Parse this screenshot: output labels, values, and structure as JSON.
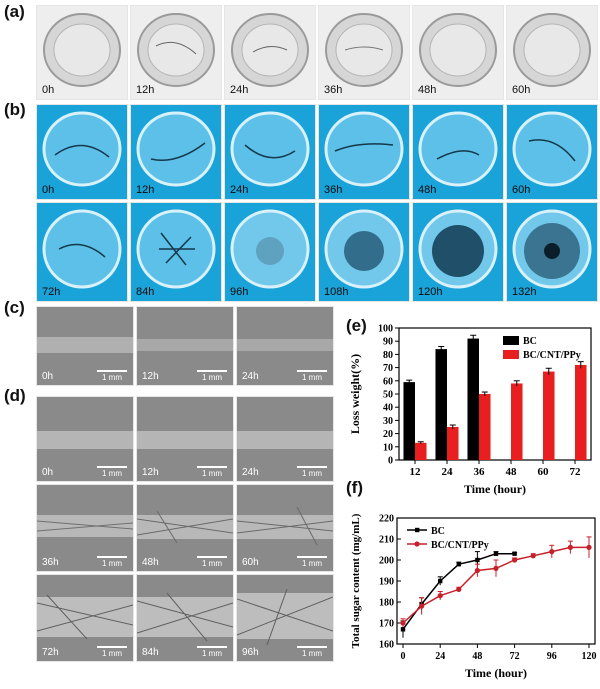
{
  "panels": {
    "a": {
      "label": "(a)",
      "times": [
        "0h",
        "12h",
        "24h",
        "36h",
        "48h",
        "60h"
      ]
    },
    "b": {
      "label": "(b)",
      "row1": [
        "0h",
        "12h",
        "24h",
        "36h",
        "48h",
        "60h"
      ],
      "row2": [
        "72h",
        "84h",
        "96h",
        "108h",
        "120h",
        "132h"
      ]
    },
    "c": {
      "label": "(c)",
      "times": [
        "0h",
        "12h",
        "24h"
      ],
      "scale": "1 mm"
    },
    "d": {
      "label": "(d)",
      "row1": [
        "0h",
        "12h",
        "24h"
      ],
      "row2": [
        "36h",
        "48h",
        "60h"
      ],
      "row3": [
        "72h",
        "84h",
        "96h"
      ],
      "scale": "1 mm"
    },
    "e": {
      "label": "(e)"
    },
    "f": {
      "label": "(f)"
    }
  },
  "colors": {
    "bc": "#000000",
    "bccnt_bar": "#e81f1f",
    "bccnt_line": "#c8202a",
    "dish_a_bg": "#eeeeee",
    "dish_b_bg": "#1aa3d9",
    "sem_bg": "#8a8a8a"
  },
  "chart_data": [
    {
      "type": "bar",
      "panel": "(e)",
      "categories": [
        "12",
        "24",
        "36",
        "48",
        "60",
        "72"
      ],
      "xlabel": "Time (hour)",
      "ylabel": "Loss weight(%)",
      "ylim": [
        0,
        100
      ],
      "yticks": [
        0,
        10,
        20,
        30,
        40,
        50,
        60,
        70,
        80,
        90,
        100
      ],
      "legend": "top-right",
      "series": [
        {
          "name": "BC",
          "values": [
            59,
            84,
            92,
            null,
            null,
            null
          ],
          "errors": [
            1.5,
            2,
            2.5,
            null,
            null,
            null
          ]
        },
        {
          "name": "BC/CNT/PPy",
          "values": [
            13,
            25,
            50,
            58,
            67,
            72
          ],
          "errors": [
            0.8,
            1.5,
            1.5,
            2,
            2.5,
            2.5
          ]
        }
      ]
    },
    {
      "type": "line",
      "panel": "(f)",
      "xlabel": "Time (hour)",
      "ylabel": "Total sugar content (mg/mL)",
      "xlim": [
        0,
        120
      ],
      "ylim": [
        160,
        220
      ],
      "xticks": [
        0,
        24,
        48,
        72,
        96,
        120
      ],
      "yticks": [
        160,
        170,
        180,
        190,
        200,
        210,
        220
      ],
      "legend": "top-left",
      "series": [
        {
          "name": "BC",
          "x": [
            0,
            12,
            24,
            36,
            48,
            60,
            72
          ],
          "y": [
            167,
            179,
            190,
            198,
            200,
            203,
            203
          ],
          "errors": [
            4,
            3,
            2,
            1,
            4,
            1,
            0.5
          ]
        },
        {
          "name": "BC/CNT/PPy",
          "x": [
            0,
            12,
            24,
            36,
            48,
            60,
            72,
            84,
            96,
            108,
            120
          ],
          "y": [
            170,
            178,
            183,
            186,
            195,
            196,
            200,
            202,
            204,
            206,
            206
          ],
          "errors": [
            2,
            4,
            2,
            1,
            3,
            4,
            1,
            1,
            3,
            3,
            5
          ]
        }
      ]
    }
  ]
}
